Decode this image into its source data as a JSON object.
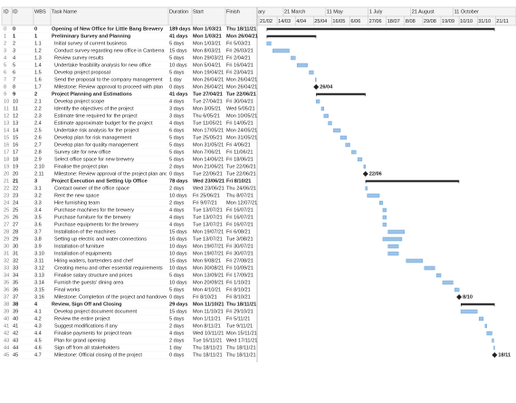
{
  "header": {
    "columns": [
      "ID",
      "ID",
      "WBS",
      "Task Name",
      "Duration",
      "Start",
      "Finish"
    ]
  },
  "timescale": {
    "top": [
      "ary",
      "21 March",
      "11 May",
      "1 July",
      "21 August",
      "11 October"
    ],
    "bottom": [
      "21/02",
      "14/03",
      "4/04",
      "25/04",
      "16/05",
      "6/06",
      "27/06",
      "18/07",
      "8/08",
      "29/08",
      "19/09",
      "10/10",
      "31/10",
      "21/11"
    ]
  },
  "rows": [
    [
      0,
      0,
      "0",
      "Opening of New Office for Little Bang Brewery",
      "189 days",
      "Mon 1/03/21",
      "Thu 18/11/21",
      "summary"
    ],
    [
      1,
      1,
      "1",
      "Preliminary Survey and Planning",
      "41 days",
      "Mon 1/03/21",
      "Mon 26/04/21",
      "summary"
    ],
    [
      2,
      2,
      "1.1",
      "Initial survey of current business",
      "5 days",
      "Mon 1/03/21",
      "Fri 5/03/21",
      "task"
    ],
    [
      3,
      3,
      "1.2",
      "Conduct survey regarding new office in Canberra",
      "15 days",
      "Mon 8/03/21",
      "Fri 26/03/21",
      "task"
    ],
    [
      4,
      4,
      "1.3",
      "Review survey results",
      "5 days",
      "Mon 29/03/21",
      "Fri 2/04/21",
      "task"
    ],
    [
      5,
      5,
      "1.4",
      "Undertake feasibility analysis for new office",
      "10 days",
      "Mon 5/04/21",
      "Fri 16/04/21",
      "task"
    ],
    [
      6,
      6,
      "1.5",
      "Develop project proposal",
      "5 days",
      "Mon 19/04/21",
      "Fri 23/04/21",
      "task"
    ],
    [
      7,
      7,
      "1.6",
      "Send the proposal to the company management",
      "1 day",
      "Mon 26/04/21",
      "Mon 26/04/21",
      "task"
    ],
    [
      8,
      8,
      "1.7",
      "Milestone: Review approval to proceed with plan",
      "0 days",
      "Mon 26/04/21",
      "Mon 26/04/21",
      "milestone",
      "26/04"
    ],
    [
      9,
      9,
      "2",
      "Project Planning and Estimations",
      "41 days",
      "Tue 27/04/21",
      "Tue 22/06/21",
      "summary"
    ],
    [
      10,
      10,
      "2.1",
      "Develop project scope",
      "4 days",
      "Tue 27/04/21",
      "Fri 30/04/21",
      "task"
    ],
    [
      11,
      11,
      "2.2",
      "Identify the objectives of the project",
      "3 days",
      "Mon 3/05/21",
      "Wed 5/05/21",
      "task"
    ],
    [
      12,
      12,
      "2.3",
      "Estimate time required for the project",
      "3 days",
      "Thu 6/05/21",
      "Mon 10/05/21",
      "task"
    ],
    [
      13,
      13,
      "2.4",
      "Estimate approximate budget for the project",
      "4 days",
      "Tue 11/05/21",
      "Fri 14/05/21",
      "task"
    ],
    [
      14,
      14,
      "2.5",
      "Undertake risk analysis for the project",
      "6 days",
      "Mon 17/05/21",
      "Mon 24/05/21",
      "task"
    ],
    [
      15,
      15,
      "2.6",
      "Develop plan for risk management",
      "5 days",
      "Tue 25/05/21",
      "Mon 31/05/21",
      "task"
    ],
    [
      16,
      16,
      "2.7",
      "Develop plan for quality management",
      "5 days",
      "Mon 31/05/21",
      "Fri 4/06/21",
      "task"
    ],
    [
      17,
      17,
      "2.8",
      "Survey site for new office",
      "5 days",
      "Mon 7/06/21",
      "Fri 11/06/21",
      "task"
    ],
    [
      18,
      18,
      "2.9",
      "Select office space for new brewery",
      "5 days",
      "Mon 14/06/21",
      "Fri 18/06/21",
      "task"
    ],
    [
      19,
      19,
      "2.10",
      "Finalise the project plan",
      "2 days",
      "Mon 21/06/21",
      "Tue 22/06/21",
      "task"
    ],
    [
      20,
      20,
      "2.11",
      "Milestone: Review approval of the project plan and budget",
      "0 days",
      "Tue 22/06/21",
      "Tue 22/06/21",
      "milestone",
      "22/06"
    ],
    [
      21,
      21,
      "3",
      "Project Execution and Setting Up Office",
      "78 days",
      "Wed 23/06/21",
      "Fri 8/10/21",
      "summary"
    ],
    [
      22,
      22,
      "3.1",
      "Contact owner of the office space",
      "2 days",
      "Wed 23/06/21",
      "Thu 24/06/21",
      "task"
    ],
    [
      23,
      23,
      "3.2",
      "Rent the new space",
      "10 days",
      "Fri 25/06/21",
      "Thu 8/07/21",
      "task"
    ],
    [
      24,
      24,
      "3.3",
      "Hire furnishing team",
      "2 days",
      "Fri 9/07/21",
      "Mon 12/07/21",
      "task"
    ],
    [
      25,
      25,
      "3.4",
      "Purchase machines for the brewery",
      "4 days",
      "Tue 13/07/21",
      "Fri 16/07/21",
      "task"
    ],
    [
      26,
      26,
      "3.5",
      "Purchase furniture for the brewery",
      "4 days",
      "Tue 13/07/21",
      "Fri 16/07/21",
      "task"
    ],
    [
      27,
      27,
      "3.6",
      "Purchase equipments for the brewery",
      "4 days",
      "Tue 13/07/21",
      "Fri 16/07/21",
      "task"
    ],
    [
      28,
      28,
      "3.7",
      "Installation of the machines",
      "15 days",
      "Mon 19/07/21",
      "Fri 6/08/21",
      "task"
    ],
    [
      29,
      29,
      "3.8",
      "Setting up electric and water connections",
      "16 days",
      "Tue 13/07/21",
      "Tue 3/08/21",
      "task"
    ],
    [
      30,
      30,
      "3.9",
      "Installation of furniture",
      "10 days",
      "Mon 19/07/21",
      "Fri 30/07/21",
      "task"
    ],
    [
      31,
      31,
      "3.10",
      "Installation of equipments",
      "10 days",
      "Mon 19/07/21",
      "Fri 30/07/21",
      "task"
    ],
    [
      32,
      32,
      "3.11",
      "Hiring waiters, bartenders and chef",
      "15 days",
      "Mon 9/08/21",
      "Fri 27/08/21",
      "task"
    ],
    [
      33,
      33,
      "3.12",
      "Creating menu and other essential requirements",
      "10 days",
      "Mon 30/08/21",
      "Fri 10/09/21",
      "task"
    ],
    [
      34,
      34,
      "3.13",
      "Finalise salary structure and prices",
      "5 days",
      "Mon 13/09/21",
      "Fri 17/09/21",
      "task"
    ],
    [
      35,
      35,
      "3.14",
      "Furnish the guests' dining area",
      "10 days",
      "Mon 20/09/21",
      "Fri 1/10/21",
      "task"
    ],
    [
      36,
      36,
      "3.15",
      "Final works",
      "5 days",
      "Mon 4/10/21",
      "Fri 8/10/21",
      "task"
    ],
    [
      37,
      37,
      "3.16",
      "Milestone: Completion of the project and handover",
      "0 days",
      "Fri 8/10/21",
      "Fri 8/10/21",
      "milestone",
      "8/10"
    ],
    [
      38,
      38,
      "4",
      "Review, Sign Off and Closing",
      "29 days",
      "Mon 11/10/21",
      "Thu 18/11/21",
      "summary"
    ],
    [
      39,
      39,
      "4.1",
      "Develop project document document",
      "15 days",
      "Mon 11/10/21",
      "Fri 29/10/21",
      "task"
    ],
    [
      40,
      40,
      "4.2",
      "Review the entire project",
      "5 days",
      "Mon 1/11/21",
      "Fri 5/11/21",
      "task"
    ],
    [
      41,
      41,
      "4.3",
      "Suggest modifications if any",
      "2 days",
      "Mon 8/11/21",
      "Tue 9/11/21",
      "task"
    ],
    [
      42,
      42,
      "4.4",
      "Finalise payments for project team",
      "4 days",
      "Wed 10/11/21",
      "Mon 15/11/21",
      "task"
    ],
    [
      43,
      43,
      "4.5",
      "Plan for grand opening",
      "2 days",
      "Tue 16/11/21",
      "Wed 17/11/21",
      "task"
    ],
    [
      44,
      44,
      "4.6",
      "Sign off from all stakeholders",
      "1 day",
      "Thu 18/11/21",
      "Thu 18/11/21",
      "task"
    ],
    [
      45,
      45,
      "4.7",
      "Milestone: Official closing of the project",
      "0 days",
      "Thu 18/11/21",
      "Thu 18/11/21",
      "milestone",
      "18/11"
    ]
  ]
}
